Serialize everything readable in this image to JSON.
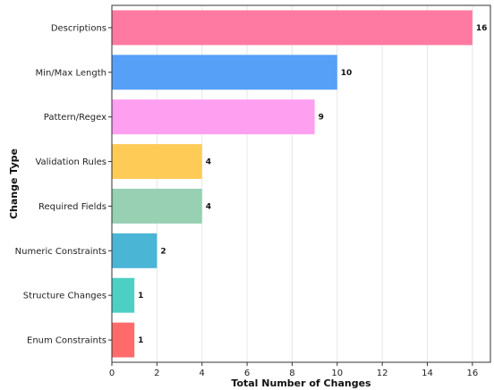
{
  "chart_data": {
    "type": "bar",
    "orientation": "horizontal",
    "categories": [
      "Descriptions",
      "Min/Max Length",
      "Pattern/Regex",
      "Validation Rules",
      "Required Fields",
      "Numeric Constraints",
      "Structure Changes",
      "Enum Constraints"
    ],
    "values": [
      16,
      10,
      9,
      4,
      4,
      2,
      1,
      1
    ],
    "colors": [
      "#ff7aa2",
      "#56a0f8",
      "#ff9ff0",
      "#fecb57",
      "#97d0b3",
      "#4bb5d6",
      "#4dd0c4",
      "#ff6b6b"
    ],
    "xlabel": "Total Number of Changes",
    "ylabel": "Change Type",
    "xlim": [
      0,
      16.8
    ],
    "xticks": [
      0,
      2,
      4,
      6,
      8,
      10,
      12,
      14,
      16
    ],
    "grid": "vertical",
    "title": ""
  }
}
